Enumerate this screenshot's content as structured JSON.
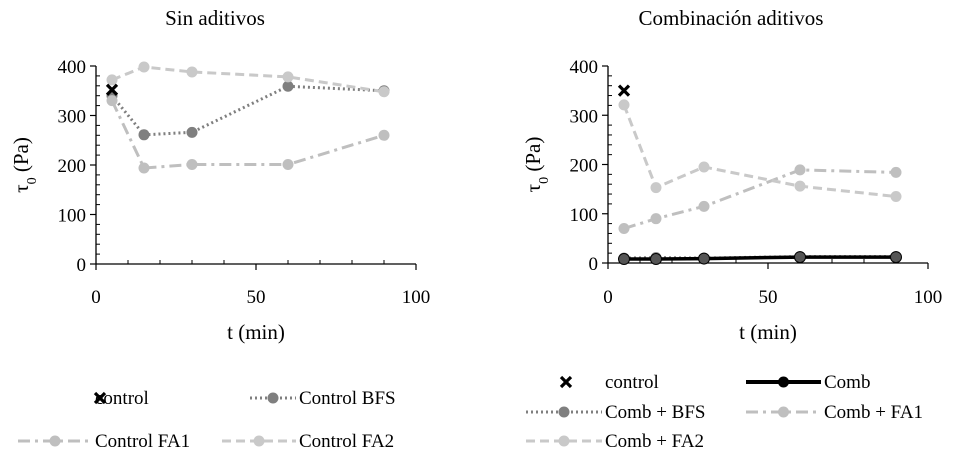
{
  "colors": {
    "axis": "#000000",
    "control": "#000000",
    "bfs": "#7f7f7f",
    "fa1": "#bfbfbf",
    "fa2": "#c9c9c9",
    "comb": "#000000",
    "comb_bfs": "#7f7f7f",
    "comb_fa1": "#bfbfbf",
    "comb_fa2": "#c9c9c9"
  },
  "chart_data": [
    {
      "type": "line",
      "title": "Sin aditivos",
      "xlabel": "t (min)",
      "ylabel_main": "τ",
      "ylabel_sub": "0",
      "ylabel_unit": " (Pa)",
      "xlim": [
        0,
        100
      ],
      "ylim": [
        0,
        400
      ],
      "xticks": [
        0,
        50,
        100
      ],
      "yticks": [
        0,
        100,
        200,
        300,
        400
      ],
      "grid": false,
      "legend_position": "bottom",
      "series": [
        {
          "name": "control",
          "marker": "x",
          "line": "none",
          "color": "#000000",
          "x": [
            5
          ],
          "y": [
            352
          ]
        },
        {
          "name": "Control BFS",
          "marker": "circle",
          "line": "dotted",
          "color": "#7f7f7f",
          "x": [
            5,
            15,
            30,
            60,
            90
          ],
          "y": [
            340,
            261,
            266,
            359,
            350
          ]
        },
        {
          "name": "Control FA1",
          "marker": "circle",
          "line": "dashdot",
          "color": "#bfbfbf",
          "x": [
            5,
            15,
            30,
            60,
            90
          ],
          "y": [
            330,
            194,
            201,
            201,
            260
          ]
        },
        {
          "name": "Control FA2",
          "marker": "circle",
          "line": "dashed",
          "color": "#c9c9c9",
          "x": [
            5,
            15,
            30,
            60,
            90
          ],
          "y": [
            372,
            398,
            388,
            378,
            348
          ]
        }
      ]
    },
    {
      "type": "line",
      "title": "Combinación aditivos",
      "xlabel": "t (min)",
      "ylabel_main": "τ",
      "ylabel_sub": "0",
      "ylabel_unit": " (Pa)",
      "xlim": [
        0,
        100
      ],
      "ylim": [
        0,
        400
      ],
      "xticks": [
        0,
        50,
        100
      ],
      "yticks": [
        0,
        100,
        200,
        300,
        400
      ],
      "grid": false,
      "legend_position": "bottom",
      "series": [
        {
          "name": "control",
          "marker": "x",
          "line": "none",
          "color": "#000000",
          "x": [
            5
          ],
          "y": [
            350
          ]
        },
        {
          "name": "Comb",
          "marker": "circle",
          "line": "solid",
          "color": "#000000",
          "x": [
            5,
            15,
            30,
            60,
            90
          ],
          "y": [
            8,
            8,
            9,
            12,
            12
          ]
        },
        {
          "name": "Comb + BFS",
          "marker": "circle",
          "line": "dotted",
          "color": "#7f7f7f",
          "x": [
            5,
            15,
            30,
            60,
            90
          ],
          "y": [
            10,
            11,
            10,
            13,
            13
          ]
        },
        {
          "name": "Comb + FA1",
          "marker": "circle",
          "line": "dashdot",
          "color": "#bfbfbf",
          "x": [
            5,
            15,
            30,
            60,
            90
          ],
          "y": [
            70,
            90,
            115,
            189,
            184
          ]
        },
        {
          "name": "Comb + FA2",
          "marker": "circle",
          "line": "dashed",
          "color": "#c9c9c9",
          "x": [
            5,
            15,
            30,
            60,
            90
          ],
          "y": [
            321,
            153,
            195,
            156,
            135
          ]
        }
      ]
    }
  ]
}
